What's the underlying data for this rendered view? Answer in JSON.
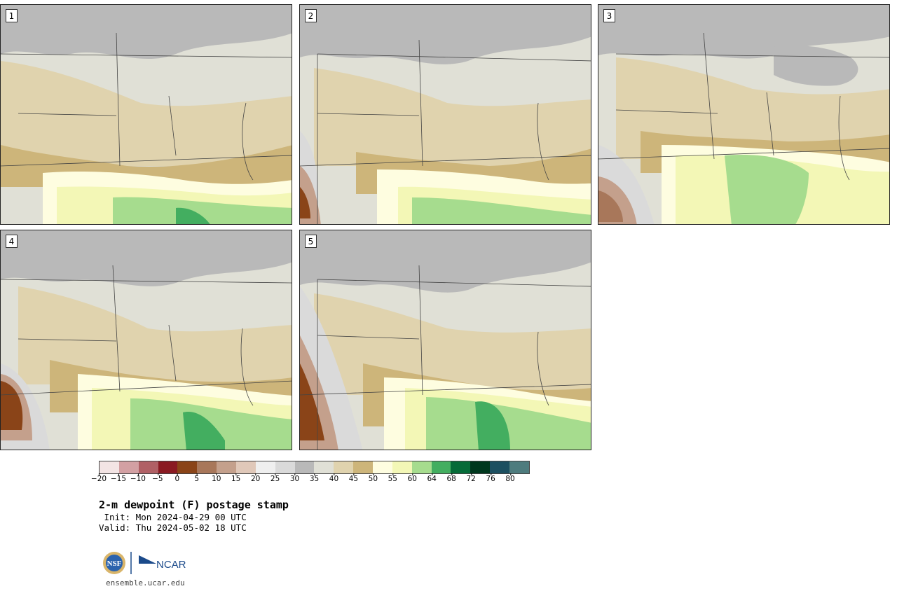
{
  "panels": [
    {
      "number": "1"
    },
    {
      "number": "2"
    },
    {
      "number": "3"
    },
    {
      "number": "4"
    },
    {
      "number": "5"
    }
  ],
  "colorbar": {
    "colors": [
      "#f3e4e4",
      "#d3a0a3",
      "#b06065",
      "#8a1a22",
      "#8a4418",
      "#a8775a",
      "#c4a08c",
      "#e0c8b9",
      "#efefef",
      "#dadada",
      "#b9b9b9",
      "#e0e0d6",
      "#e0d3ae",
      "#cdb57a",
      "#fefde0",
      "#f3f7b6",
      "#a6dc8e",
      "#43ae60",
      "#056b38",
      "#00381e",
      "#1c4f60",
      "#4e7c7e"
    ],
    "tick_labels": [
      "−20",
      "−15",
      "−10",
      "−5",
      "0",
      "5",
      "10",
      "15",
      "20",
      "25",
      "30",
      "35",
      "40",
      "45",
      "50",
      "55",
      "60",
      "64",
      "68",
      "72",
      "76",
      "80"
    ]
  },
  "title": "2-m dewpoint (F) postage stamp",
  "init": " Init: Mon 2024-04-29 00 UTC",
  "valid": "Valid: Thu 2024-05-02 18 UTC",
  "logos": {
    "nsf": "NSF",
    "ncar": "NCAR"
  },
  "website": "ensemble.ucar.edu"
}
